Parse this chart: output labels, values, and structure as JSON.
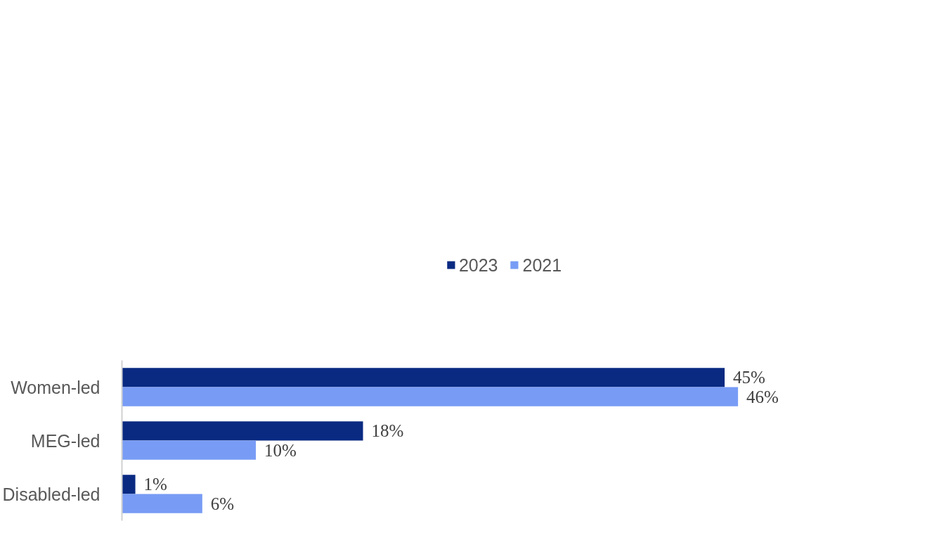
{
  "chart_data": {
    "type": "bar",
    "orientation": "horizontal",
    "categories": [
      "Women-led",
      "MEG-led",
      "Disabled-led"
    ],
    "series": [
      {
        "name": "2023",
        "color": "#0a2a82",
        "values": [
          45,
          18,
          1
        ],
        "value_labels": [
          "45%",
          "18%",
          "1%"
        ]
      },
      {
        "name": "2021",
        "color": "#789cf5",
        "values": [
          46,
          10,
          6
        ],
        "value_labels": [
          "46%",
          "10%",
          "6%"
        ]
      }
    ],
    "legend": "top",
    "grid": false
  }
}
